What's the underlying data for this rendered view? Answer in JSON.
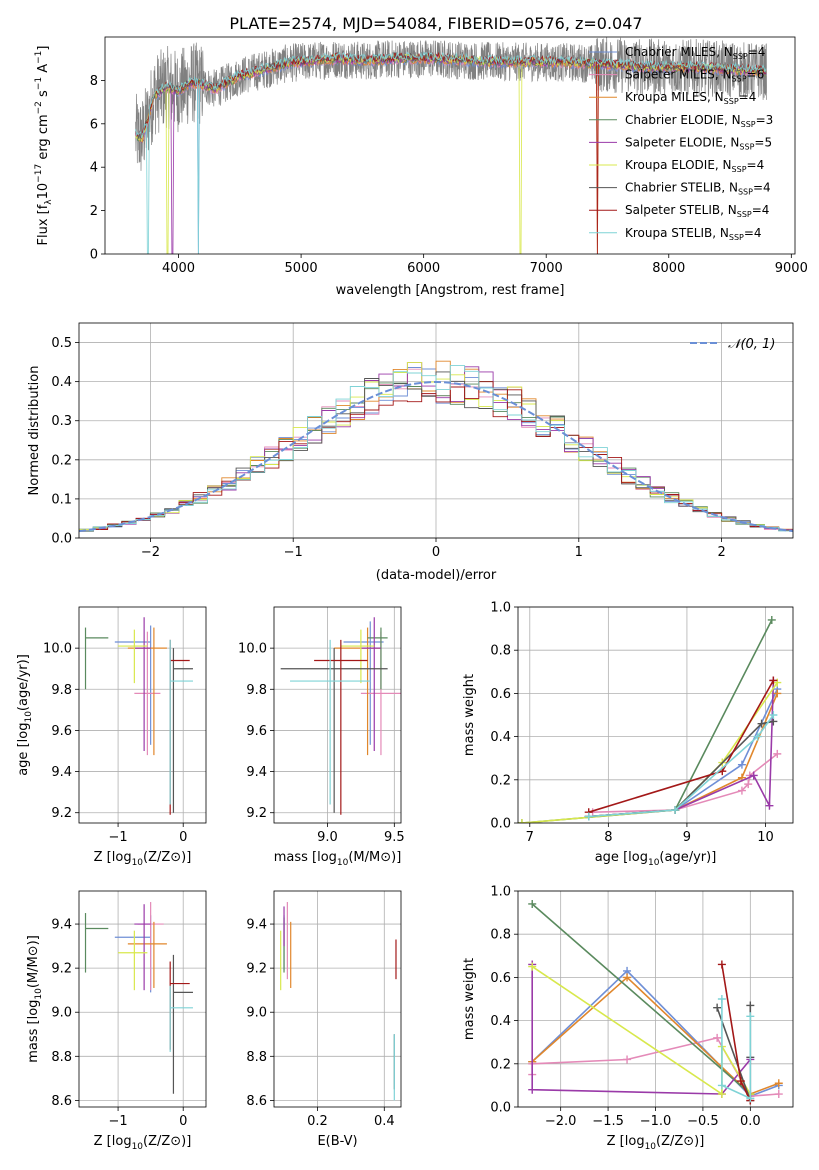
{
  "title": "PLATE=2574, MJD=54084, FIBERID=0576, z=0.047",
  "colors": {
    "Chabrier MILES": "#6f8fd6",
    "Salpeter MILES": "#e48ab8",
    "Kroupa MILES": "#e0872c",
    "Chabrier ELODIE": "#5a8a5e",
    "Salpeter ELODIE": "#9a3aa8",
    "Kroupa ELODIE": "#d8e84c",
    "Chabrier STELIB": "#555555",
    "Salpeter STELIB": "#a31818",
    "Kroupa STELIB": "#7fd3d6"
  },
  "chart_data": [
    {
      "id": "spectrum",
      "type": "line",
      "xlabel": "wavelength [Angstrom, rest frame]",
      "ylabel_parts": [
        "Flux [f",
        "λ",
        "10",
        "−17",
        " erg cm",
        "−2",
        " s",
        "−1",
        " A",
        "−1",
        "]"
      ],
      "xlim": [
        3400,
        9030
      ],
      "ylim": [
        0,
        10
      ],
      "xticks": [
        4000,
        5000,
        6000,
        7000,
        8000,
        9000
      ],
      "yticks": [
        0,
        2,
        4,
        6,
        8
      ],
      "grid": false,
      "legend": "right",
      "legend_entries": [
        {
          "model": "Chabrier MILES",
          "label": "Chabrier MILES, N",
          "sub": "SSP",
          "tail": "=4"
        },
        {
          "model": "Salpeter MILES",
          "label": "Salpeter MILES, N",
          "sub": "SSP",
          "tail": "=6"
        },
        {
          "model": "Kroupa MILES",
          "label": "Kroupa MILES, N",
          "sub": "SSP",
          "tail": "=4"
        },
        {
          "model": "Chabrier ELODIE",
          "label": "Chabrier ELODIE, N",
          "sub": "SSP",
          "tail": "=3"
        },
        {
          "model": "Salpeter ELODIE",
          "label": "Salpeter ELODIE, N",
          "sub": "SSP",
          "tail": "=5"
        },
        {
          "model": "Kroupa ELODIE",
          "label": "Kroupa ELODIE, N",
          "sub": "SSP",
          "tail": "=4"
        },
        {
          "model": "Chabrier STELIB",
          "label": "Chabrier STELIB, N",
          "sub": "SSP",
          "tail": "=4"
        },
        {
          "model": "Salpeter STELIB",
          "label": "Salpeter STELIB, N",
          "sub": "SSP",
          "tail": "=4"
        },
        {
          "model": "Kroupa STELIB",
          "label": "Kroupa STELIB, N",
          "sub": "SSP",
          "tail": "=4"
        }
      ],
      "model_spectrum": {
        "x": [
          3650,
          3700,
          3750,
          3800,
          3900,
          4000,
          4100,
          4200,
          4300,
          4500,
          4700,
          4900,
          5100,
          5300,
          5500,
          5800,
          6100,
          6400,
          6700,
          7000,
          7300,
          7600,
          7900,
          8200,
          8500,
          8800
        ],
        "y": [
          5.5,
          5.3,
          6.2,
          7.3,
          7.7,
          7.5,
          7.9,
          7.8,
          7.6,
          8.2,
          8.5,
          8.8,
          8.9,
          9.0,
          8.9,
          9.0,
          9.0,
          8.9,
          8.85,
          8.85,
          8.8,
          8.7,
          8.6,
          8.6,
          8.5,
          8.4
        ]
      },
      "data_spectrum": {
        "x_range": [
          3650,
          8800
        ],
        "level": "as model",
        "scatter": 1.2
      }
    },
    {
      "id": "residuals",
      "type": "bar",
      "style": "step histogram",
      "xlabel": "(data-model)/error",
      "ylabel": "Normed distribution",
      "xlim": [
        -2.5,
        2.5
      ],
      "ylim": [
        0,
        0.55
      ],
      "xticks": [
        -2,
        -1,
        0,
        1,
        2
      ],
      "yticks": [
        0.0,
        0.1,
        0.2,
        0.3,
        0.4,
        0.5
      ],
      "grid": true,
      "bin_width": 0.1,
      "reference_curve": "N(0,1)",
      "legend_entry": "𝒩(0, 1)",
      "legend": "top-right"
    },
    {
      "id": "age_vs_Z",
      "type": "scatter",
      "style": "error bars",
      "xlabel": "Z [log",
      "ylabel": "age  [log",
      "xlim": [
        -1.6,
        0.35
      ],
      "ylim": [
        9.15,
        10.2
      ],
      "xticks": [
        -1,
        0
      ],
      "yticks": [
        9.2,
        9.4,
        9.6,
        9.8,
        10.0
      ],
      "grid": true,
      "points": [
        {
          "model": "Chabrier MILES",
          "x": -0.5,
          "xerr": [
            0.55,
            0.0
          ],
          "y": 10.03,
          "yerr": [
            0.5,
            0.08
          ]
        },
        {
          "model": "Salpeter MILES",
          "x": -0.55,
          "xerr": [
            0.2,
            0.2
          ],
          "y": 9.78,
          "yerr": [
            0.3,
            0.3
          ]
        },
        {
          "model": "Kroupa MILES",
          "x": -0.45,
          "xerr": [
            0.4,
            0.2
          ],
          "y": 10.0,
          "yerr": [
            0.52,
            0.1
          ]
        },
        {
          "model": "Chabrier ELODIE",
          "x": -1.5,
          "xerr": [
            0.0,
            0.35
          ],
          "y": 10.05,
          "yerr": [
            0.25,
            0.05
          ]
        },
        {
          "model": "Salpeter ELODIE",
          "x": -0.6,
          "xerr": [
            0.15,
            0.1
          ],
          "y": 10.0,
          "yerr": [
            0.5,
            0.15
          ]
        },
        {
          "model": "Kroupa ELODIE",
          "x": -0.75,
          "xerr": [
            0.25,
            0.2
          ],
          "y": 10.01,
          "yerr": [
            0.18,
            0.08
          ]
        },
        {
          "model": "Chabrier STELIB",
          "x": -0.15,
          "xerr": [
            0.0,
            0.3
          ],
          "y": 9.9,
          "yerr": [
            0.7,
            0.1
          ]
        },
        {
          "model": "Salpeter STELIB",
          "x": -0.2,
          "xerr": [
            0.0,
            0.3
          ],
          "y": 9.94,
          "yerr": [
            0.75,
            0.1
          ]
        },
        {
          "model": "Kroupa STELIB",
          "x": -0.2,
          "xerr": [
            0.0,
            0.35
          ],
          "y": 9.84,
          "yerr": [
            0.6,
            0.2
          ]
        }
      ]
    },
    {
      "id": "age_vs_mass",
      "type": "scatter",
      "style": "error bars",
      "xlabel": "mass [log",
      "ylabel": "",
      "xlim": [
        8.6,
        9.55
      ],
      "ylim": [
        9.15,
        10.2
      ],
      "xticks": [
        9.0,
        9.5
      ],
      "yticks": [
        9.2,
        9.4,
        9.6,
        9.8,
        10.0
      ],
      "grid": true,
      "points": [
        {
          "model": "Chabrier MILES",
          "x": 9.32,
          "xerr": [
            0.2,
            0.1
          ],
          "y": 10.03,
          "yerr": [
            0.5,
            0.1
          ]
        },
        {
          "model": "Salpeter MILES",
          "x": 9.4,
          "xerr": [
            0.15,
            0.15
          ],
          "y": 9.78,
          "yerr": [
            0.3,
            0.3
          ]
        },
        {
          "model": "Kroupa MILES",
          "x": 9.3,
          "xerr": [
            0.25,
            0.1
          ],
          "y": 10.0,
          "yerr": [
            0.52,
            0.1
          ]
        },
        {
          "model": "Chabrier ELODIE",
          "x": 9.4,
          "xerr": [
            0.1,
            0.05
          ],
          "y": 10.05,
          "yerr": [
            0.25,
            0.05
          ]
        },
        {
          "model": "Salpeter ELODIE",
          "x": 9.35,
          "xerr": [
            0.1,
            0.05
          ],
          "y": 10.0,
          "yerr": [
            0.5,
            0.15
          ]
        },
        {
          "model": "Kroupa ELODIE",
          "x": 9.25,
          "xerr": [
            0.15,
            0.1
          ],
          "y": 10.01,
          "yerr": [
            0.18,
            0.08
          ]
        },
        {
          "model": "Chabrier STELIB",
          "x": 9.05,
          "xerr": [
            0.4,
            0.4
          ],
          "y": 9.9,
          "yerr": [
            0.7,
            0.1
          ]
        },
        {
          "model": "Salpeter STELIB",
          "x": 9.1,
          "xerr": [
            0.2,
            0.2
          ],
          "y": 9.94,
          "yerr": [
            0.75,
            0.1
          ]
        },
        {
          "model": "Kroupa STELIB",
          "x": 9.02,
          "xerr": [
            0.3,
            0.3
          ],
          "y": 9.84,
          "yerr": [
            0.6,
            0.2
          ]
        }
      ]
    },
    {
      "id": "massweight_vs_age",
      "type": "line",
      "xlabel": "age  [log",
      "ylabel": "mass weight",
      "xlim": [
        6.85,
        10.35
      ],
      "ylim": [
        0.0,
        1.0
      ],
      "xticks": [
        7,
        8,
        9,
        10
      ],
      "yticks": [
        0.0,
        0.2,
        0.4,
        0.6,
        0.8,
        1.0
      ],
      "grid": true,
      "series": [
        {
          "model": "Chabrier MILES",
          "x": [
            7.75,
            8.85,
            9.7,
            10.15
          ],
          "y": [
            0.03,
            0.06,
            0.27,
            0.62
          ]
        },
        {
          "model": "Salpeter MILES",
          "x": [
            7.8,
            8.85,
            9.7,
            9.78,
            9.8,
            10.15
          ],
          "y": [
            0.05,
            0.06,
            0.15,
            0.18,
            0.22,
            0.32
          ]
        },
        {
          "model": "Kroupa MILES",
          "x": [
            7.75,
            8.85,
            9.7,
            10.15
          ],
          "y": [
            0.03,
            0.06,
            0.21,
            0.6
          ]
        },
        {
          "model": "Chabrier ELODIE",
          "x": [
            6.9,
            8.85,
            10.08
          ],
          "y": [
            0.0,
            0.06,
            0.94
          ]
        },
        {
          "model": "Salpeter ELODIE",
          "x": [
            7.75,
            8.85,
            9.85,
            10.05,
            10.1
          ],
          "y": [
            0.03,
            0.06,
            0.22,
            0.08,
            0.66
          ]
        },
        {
          "model": "Kroupa ELODIE",
          "x": [
            6.9,
            8.85,
            9.45,
            10.15
          ],
          "y": [
            0.0,
            0.06,
            0.28,
            0.65
          ]
        },
        {
          "model": "Chabrier STELIB",
          "x": [
            7.75,
            8.85,
            9.95,
            10.1
          ],
          "y": [
            0.03,
            0.06,
            0.46,
            0.47
          ]
        },
        {
          "model": "Salpeter STELIB",
          "x": [
            7.75,
            9.45,
            10.1
          ],
          "y": [
            0.05,
            0.24,
            0.66
          ]
        },
        {
          "model": "Kroupa STELIB",
          "x": [
            7.75,
            8.85,
            9.9,
            10.1
          ],
          "y": [
            0.03,
            0.06,
            0.4,
            0.5
          ]
        }
      ]
    },
    {
      "id": "mass_vs_Z",
      "type": "scatter",
      "style": "error bars",
      "xlabel": "Z [log",
      "ylabel": "mass [log",
      "xlim": [
        -1.6,
        0.35
      ],
      "ylim": [
        8.57,
        9.55
      ],
      "xticks": [
        -1,
        0
      ],
      "yticks": [
        8.6,
        8.8,
        9.0,
        9.2,
        9.4
      ],
      "grid": true,
      "points": [
        {
          "model": "Chabrier MILES",
          "x": -0.5,
          "xerr": [
            0.55,
            0.0
          ],
          "y": 9.34,
          "yerr": [
            0.25,
            0.1
          ]
        },
        {
          "model": "Salpeter MILES",
          "x": -0.5,
          "xerr": [
            0.2,
            0.2
          ],
          "y": 9.4,
          "yerr": [
            0.3,
            0.1
          ]
        },
        {
          "model": "Kroupa MILES",
          "x": -0.45,
          "xerr": [
            0.4,
            0.2
          ],
          "y": 9.31,
          "yerr": [
            0.2,
            0.1
          ]
        },
        {
          "model": "Chabrier ELODIE",
          "x": -1.5,
          "xerr": [
            0.0,
            0.35
          ],
          "y": 9.38,
          "yerr": [
            0.2,
            0.07
          ]
        },
        {
          "model": "Salpeter ELODIE",
          "x": -0.6,
          "xerr": [
            0.15,
            0.1
          ],
          "y": 9.4,
          "yerr": [
            0.3,
            0.09
          ]
        },
        {
          "model": "Kroupa ELODIE",
          "x": -0.75,
          "xerr": [
            0.25,
            0.2
          ],
          "y": 9.27,
          "yerr": [
            0.17,
            0.1
          ]
        },
        {
          "model": "Chabrier STELIB",
          "x": -0.15,
          "xerr": [
            0.0,
            0.3
          ],
          "y": 9.09,
          "yerr": [
            0.46,
            0.17
          ]
        },
        {
          "model": "Salpeter STELIB",
          "x": -0.2,
          "xerr": [
            0.0,
            0.3
          ],
          "y": 9.13,
          "yerr": [
            0.3,
            0.1
          ]
        },
        {
          "model": "Kroupa STELIB",
          "x": -0.2,
          "xerr": [
            0.0,
            0.35
          ],
          "y": 9.02,
          "yerr": [
            0.2,
            0.1
          ]
        }
      ]
    },
    {
      "id": "mass_vs_EBV",
      "type": "scatter",
      "style": "error bars",
      "xlabel": "E(B-V)",
      "ylabel": "",
      "xlim": [
        0.07,
        0.45
      ],
      "ylim": [
        8.57,
        9.55
      ],
      "xticks": [
        0.2,
        0.4
      ],
      "yticks": [
        8.6,
        8.8,
        9.0,
        9.2,
        9.4
      ],
      "grid": true,
      "points": [
        {
          "model": "Chabrier MILES",
          "x": 0.1,
          "xerr": [
            0.0,
            0.0
          ],
          "y": 9.34,
          "yerr": [
            0.15,
            0.1
          ]
        },
        {
          "model": "Salpeter MILES",
          "x": 0.11,
          "xerr": [
            0.0,
            0.0
          ],
          "y": 9.4,
          "yerr": [
            0.25,
            0.1
          ]
        },
        {
          "model": "Kroupa MILES",
          "x": 0.12,
          "xerr": [
            0.0,
            0.0
          ],
          "y": 9.31,
          "yerr": [
            0.2,
            0.1
          ]
        },
        {
          "model": "Chabrier ELODIE",
          "x": 0.1,
          "xerr": [
            0.0,
            0.0
          ],
          "y": 9.38,
          "yerr": [
            0.2,
            0.05
          ]
        },
        {
          "model": "Salpeter ELODIE",
          "x": 0.1,
          "xerr": [
            0.0,
            0.0
          ],
          "y": 9.4,
          "yerr": [
            0.1,
            0.08
          ]
        },
        {
          "model": "Kroupa ELODIE",
          "x": 0.09,
          "xerr": [
            0.0,
            0.0
          ],
          "y": 9.27,
          "yerr": [
            0.17,
            0.1
          ]
        },
        {
          "model": "Chabrier STELIB",
          "x": 0.43,
          "xerr": [
            0.0,
            0.0
          ],
          "y": 8.8,
          "yerr": [
            0.15,
            0.1
          ]
        },
        {
          "model": "Salpeter STELIB",
          "x": 0.435,
          "xerr": [
            0.0,
            0.0
          ],
          "y": 9.25,
          "yerr": [
            0.1,
            0.08
          ]
        },
        {
          "model": "Kroupa STELIB",
          "x": 0.43,
          "xerr": [
            0.0,
            0.0
          ],
          "y": 8.8,
          "yerr": [
            0.2,
            0.1
          ]
        }
      ]
    },
    {
      "id": "massweight_vs_Z",
      "type": "line",
      "xlabel": "Z [log",
      "ylabel": "mass weight",
      "xlim": [
        -2.45,
        0.45
      ],
      "ylim": [
        0.0,
        1.0
      ],
      "xticks": [
        -2.0,
        -1.5,
        -1.0,
        -0.5,
        0.0
      ],
      "yticks": [
        0.0,
        0.2,
        0.4,
        0.6,
        0.8,
        1.0
      ],
      "grid": true,
      "series": [
        {
          "model": "Chabrier MILES",
          "x": [
            -2.3,
            -1.3,
            0.0,
            0.3
          ],
          "y": [
            0.21,
            0.63,
            0.05,
            0.1
          ]
        },
        {
          "model": "Salpeter MILES",
          "x": [
            -2.3,
            -2.3,
            -1.3,
            -0.35,
            0.0,
            0.3
          ],
          "y": [
            0.15,
            0.2,
            0.22,
            0.32,
            0.05,
            0.06
          ]
        },
        {
          "model": "Kroupa MILES",
          "x": [
            -2.3,
            -1.3,
            0.0,
            0.3
          ],
          "y": [
            0.21,
            0.6,
            0.06,
            0.11
          ]
        },
        {
          "model": "Chabrier ELODIE",
          "x": [
            -2.3,
            0.0
          ],
          "y": [
            0.94,
            0.06
          ]
        },
        {
          "model": "Salpeter ELODIE",
          "x": [
            -2.3,
            -2.3,
            -0.3,
            0.0
          ],
          "y": [
            0.66,
            0.08,
            0.06,
            0.22
          ]
        },
        {
          "model": "Kroupa ELODIE",
          "x": [
            -2.3,
            -0.3,
            -0.3,
            0.0
          ],
          "y": [
            0.65,
            0.06,
            0.28,
            0.06
          ]
        },
        {
          "model": "Chabrier STELIB",
          "x": [
            -0.35,
            0.0,
            0.0,
            0.0
          ],
          "y": [
            0.46,
            0.03,
            0.47,
            0.23
          ]
        },
        {
          "model": "Salpeter STELIB",
          "x": [
            -0.3,
            -0.1,
            0.0
          ],
          "y": [
            0.66,
            0.12,
            0.03
          ]
        },
        {
          "model": "Kroupa STELIB",
          "x": [
            -0.3,
            -0.3,
            0.0,
            0.0
          ],
          "y": [
            0.5,
            0.1,
            0.04,
            0.42
          ]
        }
      ]
    }
  ]
}
